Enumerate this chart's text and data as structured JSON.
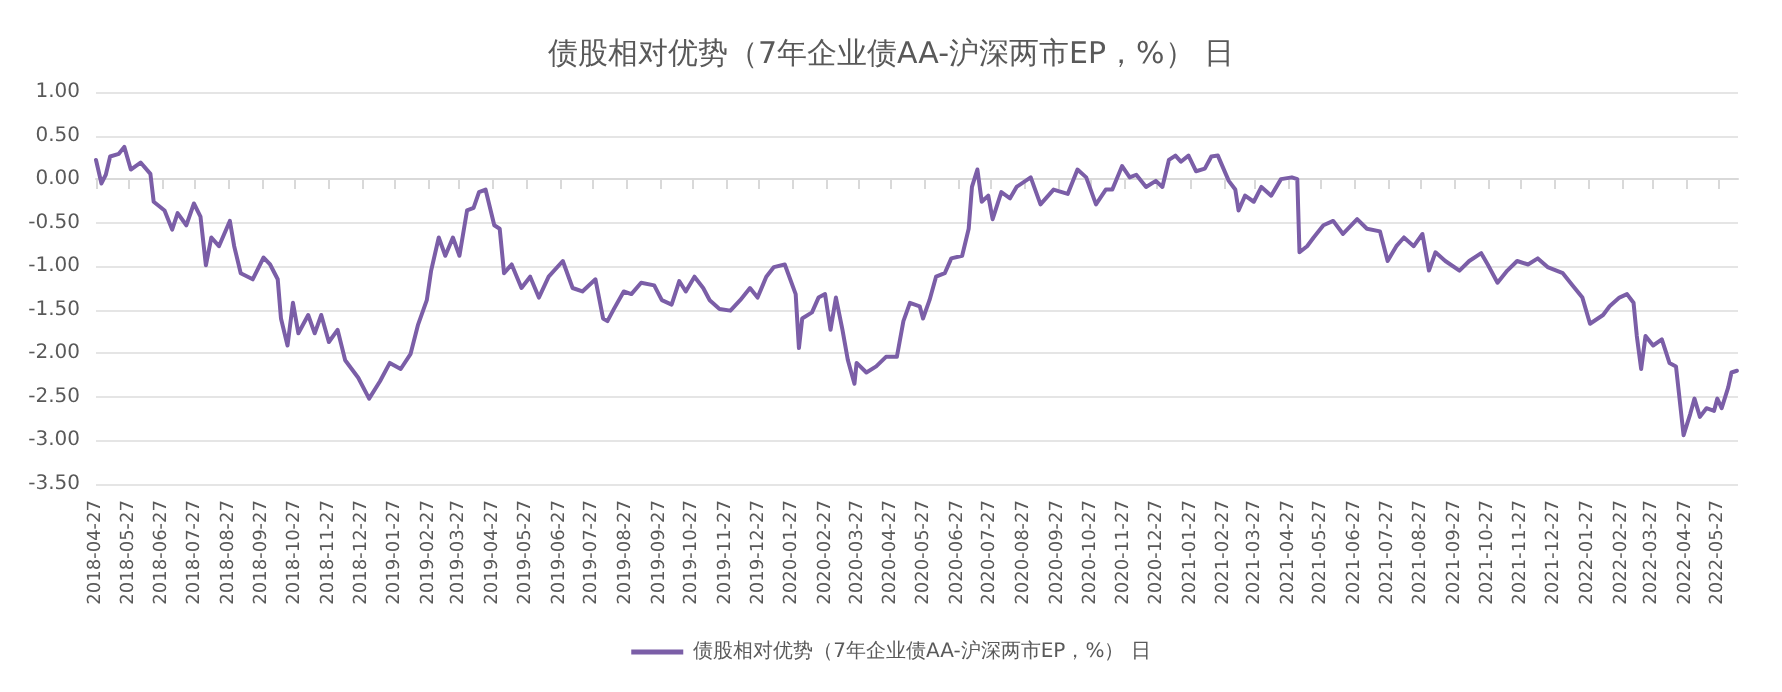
{
  "chart_data": {
    "type": "line",
    "title": "债股相对优势（7年企业债AA-沪深两市EP，%） 日",
    "legend": "bottom",
    "grid": "y",
    "marker": "none",
    "line_style": "solid",
    "xlim": [
      "2018-04-27",
      "2022-06-14"
    ],
    "xticks": [
      "2018-04-27",
      "2018-05-27",
      "2018-06-27",
      "2018-07-27",
      "2018-08-27",
      "2018-09-27",
      "2018-10-27",
      "2018-11-27",
      "2018-12-27",
      "2019-01-27",
      "2019-02-27",
      "2019-03-27",
      "2019-04-27",
      "2019-05-27",
      "2019-06-27",
      "2019-07-27",
      "2019-08-27",
      "2019-09-27",
      "2019-10-27",
      "2019-11-27",
      "2019-12-27",
      "2020-01-27",
      "2020-02-27",
      "2020-03-27",
      "2020-04-27",
      "2020-05-27",
      "2020-06-27",
      "2020-07-27",
      "2020-08-27",
      "2020-09-27",
      "2020-10-27",
      "2020-11-27",
      "2020-12-27",
      "2021-01-27",
      "2021-02-27",
      "2021-03-27",
      "2021-04-27",
      "2021-05-27",
      "2021-06-27",
      "2021-07-27",
      "2021-08-27",
      "2021-09-27",
      "2021-10-27",
      "2021-11-27",
      "2021-12-27",
      "2022-01-27",
      "2022-02-27",
      "2022-03-27",
      "2022-04-27",
      "2022-05-27"
    ],
    "ylim": [
      -3.5,
      1
    ],
    "yticks": [
      {
        "value": -3.5,
        "label": "-3.50"
      },
      {
        "value": -3,
        "label": "-3.00"
      },
      {
        "value": -2.5,
        "label": "-2.50"
      },
      {
        "value": -2,
        "label": "-2.00"
      },
      {
        "value": -1.5,
        "label": "-1.50"
      },
      {
        "value": -1,
        "label": "-1.00"
      },
      {
        "value": -0.5,
        "label": "-0.50"
      },
      {
        "value": 0,
        "label": "0.00"
      },
      {
        "value": 0.5,
        "label": "0.50"
      },
      {
        "value": 1,
        "label": "1.00"
      }
    ],
    "x": [
      "2018-04-27",
      "2018-05-02",
      "2018-05-06",
      "2018-05-10",
      "2018-05-18",
      "2018-05-23",
      "2018-05-29",
      "2018-06-07",
      "2018-06-16",
      "2018-06-19",
      "2018-06-29",
      "2018-07-06",
      "2018-07-11",
      "2018-07-19",
      "2018-07-26",
      "2018-08-01",
      "2018-08-06",
      "2018-08-11",
      "2018-08-18",
      "2018-08-28",
      "2018-09-01",
      "2018-09-07",
      "2018-09-18",
      "2018-09-28",
      "2018-10-04",
      "2018-10-11",
      "2018-10-14",
      "2018-10-20",
      "2018-10-25",
      "2018-10-30",
      "2018-11-08",
      "2018-11-14",
      "2018-11-20",
      "2018-11-27",
      "2018-12-05",
      "2018-12-12",
      "2018-12-24",
      "2019-01-03",
      "2019-01-13",
      "2019-01-22",
      "2019-02-01",
      "2019-02-10",
      "2019-02-17",
      "2019-02-25",
      "2019-03-01",
      "2019-03-08",
      "2019-03-14",
      "2019-03-21",
      "2019-03-27",
      "2019-04-03",
      "2019-04-09",
      "2019-04-14",
      "2019-04-20",
      "2019-04-28",
      "2019-05-03",
      "2019-05-07",
      "2019-05-14",
      "2019-05-23",
      "2019-05-31",
      "2019-06-08",
      "2019-06-17",
      "2019-06-30",
      "2019-07-09",
      "2019-07-18",
      "2019-07-30",
      "2019-08-06",
      "2019-08-10",
      "2019-08-16",
      "2019-08-25",
      "2019-09-01",
      "2019-09-10",
      "2019-09-22",
      "2019-09-29",
      "2019-10-08",
      "2019-10-15",
      "2019-10-21",
      "2019-10-29",
      "2019-11-06",
      "2019-11-12",
      "2019-11-21",
      "2019-12-01",
      "2019-12-10",
      "2019-12-19",
      "2019-12-26",
      "2020-01-03",
      "2020-01-10",
      "2020-01-20",
      "2020-01-30",
      "2020-02-02",
      "2020-02-05",
      "2020-02-14",
      "2020-02-20",
      "2020-02-26",
      "2020-03-02",
      "2020-03-07",
      "2020-03-13",
      "2020-03-18",
      "2020-03-24",
      "2020-03-26",
      "2020-04-04",
      "2020-04-13",
      "2020-04-22",
      "2020-05-02",
      "2020-05-08",
      "2020-05-14",
      "2020-05-23",
      "2020-05-26",
      "2020-06-01",
      "2020-06-07",
      "2020-06-15",
      "2020-06-21",
      "2020-07-01",
      "2020-07-07",
      "2020-07-10",
      "2020-07-15",
      "2020-07-19",
      "2020-07-25",
      "2020-07-29",
      "2020-08-06",
      "2020-08-14",
      "2020-08-20",
      "2020-09-02",
      "2020-09-11",
      "2020-09-23",
      "2020-10-06",
      "2020-10-15",
      "2020-10-23",
      "2020-11-01",
      "2020-11-10",
      "2020-11-16",
      "2020-11-25",
      "2020-12-02",
      "2020-12-08",
      "2020-12-17",
      "2020-12-26",
      "2021-01-01",
      "2021-01-07",
      "2021-01-13",
      "2021-01-18",
      "2021-01-25",
      "2021-02-01",
      "2021-02-09",
      "2021-02-15",
      "2021-02-21",
      "2021-03-03",
      "2021-03-09",
      "2021-03-12",
      "2021-03-18",
      "2021-03-26",
      "2021-04-02",
      "2021-04-11",
      "2021-04-20",
      "2021-04-30",
      "2021-05-05",
      "2021-05-07",
      "2021-05-14",
      "2021-05-20",
      "2021-05-29",
      "2021-06-07",
      "2021-06-16",
      "2021-06-29",
      "2021-07-08",
      "2021-07-20",
      "2021-07-27",
      "2021-08-04",
      "2021-08-11",
      "2021-08-20",
      "2021-08-28",
      "2021-09-03",
      "2021-09-09",
      "2021-09-18",
      "2021-10-01",
      "2021-10-10",
      "2021-10-21",
      "2021-10-27",
      "2021-11-05",
      "2021-11-14",
      "2021-11-23",
      "2021-12-03",
      "2021-12-12",
      "2021-12-21",
      "2022-01-04",
      "2022-01-13",
      "2022-01-22",
      "2022-01-29",
      "2022-02-10",
      "2022-02-16",
      "2022-02-25",
      "2022-03-04",
      "2022-03-10",
      "2022-03-13",
      "2022-03-17",
      "2022-03-21",
      "2022-03-28",
      "2022-04-05",
      "2022-04-12",
      "2022-04-18",
      "2022-04-25",
      "2022-05-01",
      "2022-05-05",
      "2022-05-10",
      "2022-05-16",
      "2022-05-23",
      "2022-05-26",
      "2022-05-30",
      "2022-06-05",
      "2022-06-08",
      "2022-06-13"
    ],
    "series": [
      {
        "name": "债股相对优势（7年企业债AA-沪深两市EP，%） 日",
        "color": "#7b5ea7",
        "values": [
          0.22,
          -0.05,
          0.05,
          0.26,
          0.29,
          0.37,
          0.11,
          0.19,
          0.06,
          -0.26,
          -0.36,
          -0.58,
          -0.39,
          -0.53,
          -0.28,
          -0.43,
          -0.99,
          -0.67,
          -0.77,
          -0.48,
          -0.77,
          -1.08,
          -1.15,
          -0.9,
          -0.98,
          -1.15,
          -1.6,
          -1.91,
          -1.42,
          -1.77,
          -1.56,
          -1.77,
          -1.56,
          -1.87,
          -1.73,
          -2.08,
          -2.28,
          -2.52,
          -2.32,
          -2.11,
          -2.18,
          -2.01,
          -1.67,
          -1.39,
          -1.05,
          -0.67,
          -0.88,
          -0.67,
          -0.88,
          -0.36,
          -0.33,
          -0.15,
          -0.12,
          -0.53,
          -0.57,
          -1.08,
          -0.98,
          -1.25,
          -1.12,
          -1.36,
          -1.12,
          -0.94,
          -1.25,
          -1.29,
          -1.15,
          -1.6,
          -1.63,
          -1.49,
          -1.29,
          -1.32,
          -1.19,
          -1.22,
          -1.39,
          -1.44,
          -1.17,
          -1.29,
          -1.12,
          -1.25,
          -1.39,
          -1.49,
          -1.51,
          -1.39,
          -1.25,
          -1.36,
          -1.12,
          -1.01,
          -0.98,
          -1.32,
          -1.94,
          -1.6,
          -1.53,
          -1.36,
          -1.32,
          -1.73,
          -1.36,
          -1.73,
          -2.08,
          -2.35,
          -2.11,
          -2.22,
          -2.15,
          -2.04,
          -2.04,
          -1.63,
          -1.42,
          -1.46,
          -1.6,
          -1.39,
          -1.12,
          -1.08,
          -0.91,
          -0.88,
          -0.57,
          -0.09,
          0.11,
          -0.26,
          -0.19,
          -0.46,
          -0.15,
          -0.22,
          -0.09,
          0.02,
          -0.29,
          -0.12,
          -0.17,
          0.11,
          0.02,
          -0.29,
          -0.12,
          -0.12,
          0.15,
          0.02,
          0.05,
          -0.09,
          -0.02,
          -0.09,
          0.22,
          0.27,
          0.2,
          0.27,
          0.09,
          0.12,
          0.26,
          0.27,
          -0.02,
          -0.12,
          -0.36,
          -0.19,
          -0.26,
          -0.09,
          -0.19,
          0,
          0.02,
          0,
          -0.84,
          -0.77,
          -0.67,
          -0.53,
          -0.48,
          -0.63,
          -0.46,
          -0.57,
          -0.6,
          -0.94,
          -0.77,
          -0.67,
          -0.77,
          -0.63,
          -1.05,
          -0.84,
          -0.94,
          -1.05,
          -0.94,
          -0.85,
          -0.98,
          -1.19,
          -1.05,
          -0.94,
          -0.98,
          -0.91,
          -1.01,
          -1.08,
          -1.22,
          -1.36,
          -1.66,
          -1.56,
          -1.46,
          -1.36,
          -1.32,
          -1.42,
          -1.8,
          -2.18,
          -1.8,
          -1.91,
          -1.84,
          -2.11,
          -2.15,
          -2.94,
          -2.7,
          -2.52,
          -2.73,
          -2.63,
          -2.66,
          -2.52,
          -2.63,
          -2.39,
          -2.22,
          -2.2
        ]
      }
    ]
  }
}
